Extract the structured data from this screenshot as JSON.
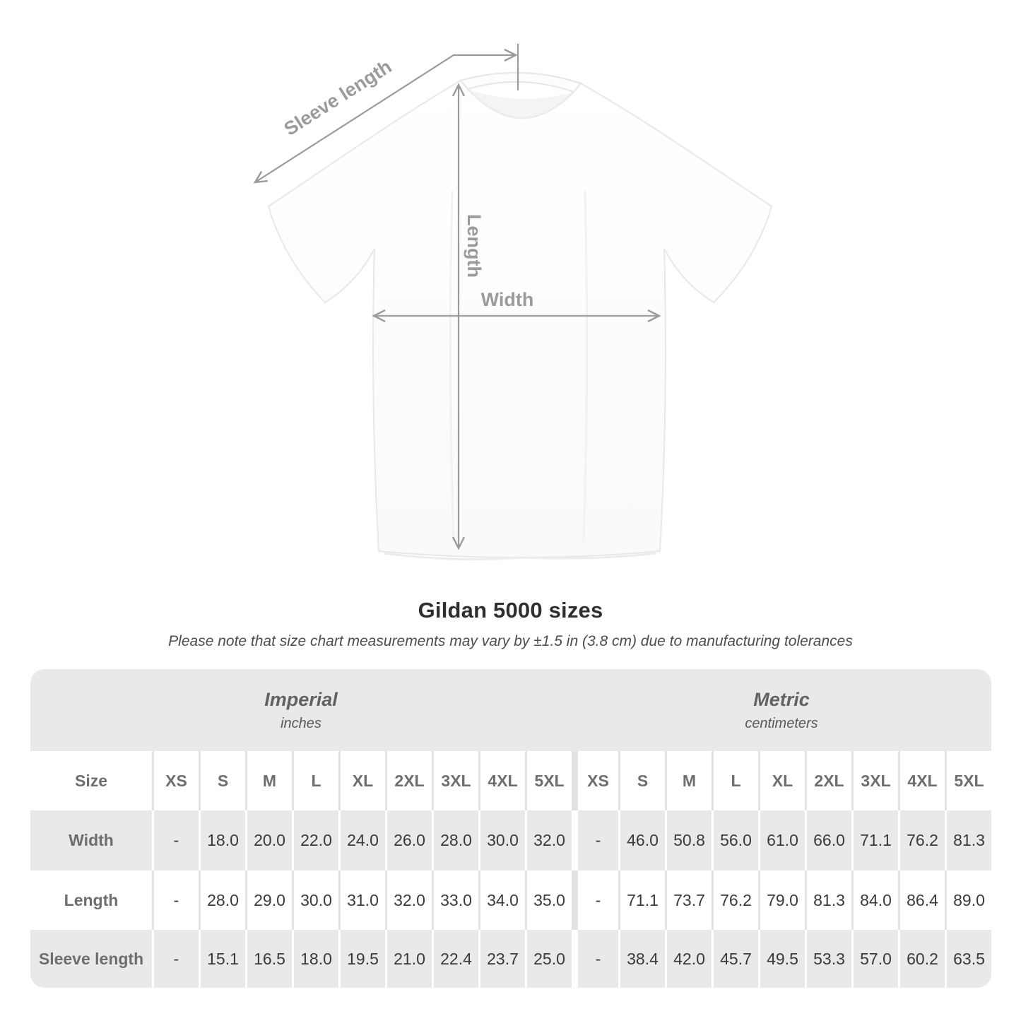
{
  "diagram": {
    "sleeve_label": "Sleeve length",
    "length_label": "Length",
    "width_label": "Width"
  },
  "title": "Gildan 5000 sizes",
  "note": "Please note that size chart measurements may vary by ±1.5 in (3.8 cm) due to manufacturing tolerances",
  "table": {
    "size_header": "Size",
    "sizes": [
      "XS",
      "S",
      "M",
      "L",
      "XL",
      "2XL",
      "3XL",
      "4XL",
      "5XL"
    ],
    "groups": [
      {
        "label": "Imperial",
        "unit": "inches"
      },
      {
        "label": "Metric",
        "unit": "centimeters"
      }
    ],
    "rows": [
      {
        "label": "Width",
        "imperial": [
          "-",
          "18.0",
          "20.0",
          "22.0",
          "24.0",
          "26.0",
          "28.0",
          "30.0",
          "32.0"
        ],
        "metric": [
          "-",
          "46.0",
          "50.8",
          "56.0",
          "61.0",
          "66.0",
          "71.1",
          "76.2",
          "81.3"
        ]
      },
      {
        "label": "Length",
        "imperial": [
          "-",
          "28.0",
          "29.0",
          "30.0",
          "31.0",
          "32.0",
          "33.0",
          "34.0",
          "35.0"
        ],
        "metric": [
          "-",
          "71.1",
          "73.7",
          "76.2",
          "79.0",
          "81.3",
          "84.0",
          "86.4",
          "89.0"
        ]
      },
      {
        "label": "Sleeve length",
        "imperial": [
          "-",
          "15.1",
          "16.5",
          "18.0",
          "19.5",
          "21.0",
          "22.4",
          "23.7",
          "25.0"
        ],
        "metric": [
          "-",
          "38.4",
          "42.0",
          "45.7",
          "49.5",
          "53.3",
          "57.0",
          "60.2",
          "63.5"
        ]
      }
    ]
  },
  "chart_data": {
    "type": "table",
    "title": "Gildan 5000 sizes",
    "subtitle": "Please note that size chart measurements may vary by ±1.5 in (3.8 cm) due to manufacturing tolerances",
    "column_groups": [
      "Imperial (inches)",
      "Metric (centimeters)"
    ],
    "columns": [
      "Size",
      "XS",
      "S",
      "M",
      "L",
      "XL",
      "2XL",
      "3XL",
      "4XL",
      "5XL",
      "XS",
      "S",
      "M",
      "L",
      "XL",
      "2XL",
      "3XL",
      "4XL",
      "5XL"
    ],
    "rows": [
      [
        "Width",
        "-",
        18.0,
        20.0,
        22.0,
        24.0,
        26.0,
        28.0,
        30.0,
        32.0,
        "-",
        46.0,
        50.8,
        56.0,
        61.0,
        66.0,
        71.1,
        76.2,
        81.3
      ],
      [
        "Length",
        "-",
        28.0,
        29.0,
        30.0,
        31.0,
        32.0,
        33.0,
        34.0,
        35.0,
        "-",
        71.1,
        73.7,
        76.2,
        79.0,
        81.3,
        84.0,
        86.4,
        89.0
      ],
      [
        "Sleeve length",
        "-",
        15.1,
        16.5,
        18.0,
        19.5,
        21.0,
        22.4,
        23.7,
        25.0,
        "-",
        38.4,
        42.0,
        45.7,
        49.5,
        53.3,
        57.0,
        60.2,
        63.5
      ]
    ]
  },
  "colors": {
    "table_gray": "#e9e9e9",
    "annotation_gray": "#9b9b9b",
    "data_text": "#3a3a3a",
    "header_text": "#6e6e6e"
  }
}
